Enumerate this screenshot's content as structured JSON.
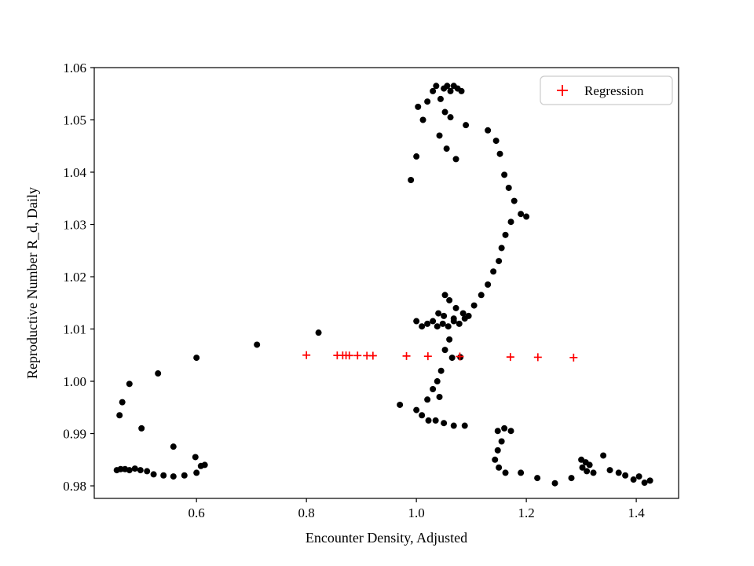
{
  "figure": {
    "background": "#ffffff",
    "axes_color": "#000000"
  },
  "chart_data": {
    "type": "scatter",
    "title": "",
    "xlabel": "Encounter Density, Adjusted",
    "ylabel": "Reproductive Number R_d, Daily",
    "xlim": [
      0.414,
      1.477
    ],
    "ylim": [
      0.9776,
      1.06
    ],
    "grid": false,
    "xtick_values": [
      0.6,
      0.8,
      1.0,
      1.2,
      1.4
    ],
    "xtick_labels": [
      "0.6",
      "0.8",
      "1.0",
      "1.2",
      "1.4"
    ],
    "ytick_values": [
      0.98,
      0.99,
      1.0,
      1.01,
      1.02,
      1.03,
      1.04,
      1.05,
      1.06
    ],
    "ytick_labels": [
      "0.98",
      "0.99",
      "1.00",
      "1.01",
      "1.02",
      "1.03",
      "1.04",
      "1.05",
      "1.06"
    ],
    "legend": {
      "position": "upper right",
      "entries": [
        {
          "label": "Regression",
          "marker": "plus",
          "color": "#ff0000"
        }
      ]
    },
    "series": [
      {
        "name": "observations",
        "marker": "circle",
        "color": "#000000",
        "marker_radius": 4,
        "points": [
          [
            0.99,
            1.0385
          ],
          [
            1.0,
            1.043
          ],
          [
            1.003,
            1.0525
          ],
          [
            1.012,
            1.05
          ],
          [
            1.02,
            1.0535
          ],
          [
            1.03,
            1.0555
          ],
          [
            1.036,
            1.0565
          ],
          [
            1.044,
            1.054
          ],
          [
            1.05,
            1.056
          ],
          [
            1.056,
            1.0565
          ],
          [
            1.062,
            1.0555
          ],
          [
            1.068,
            1.0565
          ],
          [
            1.075,
            1.056
          ],
          [
            1.082,
            1.0555
          ],
          [
            1.052,
            1.0515
          ],
          [
            1.062,
            1.0505
          ],
          [
            1.042,
            1.047
          ],
          [
            1.055,
            1.0445
          ],
          [
            1.072,
            1.0425
          ],
          [
            1.09,
            1.049
          ],
          [
            1.13,
            1.048
          ],
          [
            1.145,
            1.046
          ],
          [
            1.152,
            1.0435
          ],
          [
            1.16,
            1.0395
          ],
          [
            1.168,
            1.037
          ],
          [
            1.178,
            1.0345
          ],
          [
            1.19,
            1.032
          ],
          [
            1.2,
            1.0315
          ],
          [
            1.172,
            1.0305
          ],
          [
            1.162,
            1.028
          ],
          [
            1.155,
            1.0255
          ],
          [
            1.15,
            1.023
          ],
          [
            1.14,
            1.021
          ],
          [
            1.13,
            1.0185
          ],
          [
            1.118,
            1.0165
          ],
          [
            1.105,
            1.0145
          ],
          [
            1.085,
            1.013
          ],
          [
            1.068,
            1.012
          ],
          [
            1.052,
            1.0165
          ],
          [
            1.06,
            1.0155
          ],
          [
            1.072,
            1.014
          ],
          [
            1.095,
            1.0125
          ],
          [
            1.04,
            1.013
          ],
          [
            1.03,
            1.0115
          ],
          [
            1.02,
            1.011
          ],
          [
            1.01,
            1.0105
          ],
          [
            1.0,
            1.0115
          ],
          [
            1.048,
            1.011
          ],
          [
            1.058,
            1.0105
          ],
          [
            1.068,
            1.0115
          ],
          [
            1.038,
            1.0105
          ],
          [
            1.05,
            1.0125
          ],
          [
            1.078,
            1.011
          ],
          [
            1.088,
            1.012
          ],
          [
            0.822,
            1.0093
          ],
          [
            0.71,
            1.007
          ],
          [
            0.6,
            1.0045
          ],
          [
            1.06,
            1.008
          ],
          [
            1.052,
            1.006
          ],
          [
            1.065,
            1.0045
          ],
          [
            1.08,
            1.0046
          ],
          [
            1.045,
            1.002
          ],
          [
            1.038,
            1.0
          ],
          [
            1.03,
            0.9985
          ],
          [
            1.042,
            0.997
          ],
          [
            1.02,
            0.9965
          ],
          [
            0.97,
            0.9955
          ],
          [
            1.0,
            0.9945
          ],
          [
            1.01,
            0.9935
          ],
          [
            1.022,
            0.9925
          ],
          [
            1.035,
            0.9925
          ],
          [
            1.05,
            0.992
          ],
          [
            1.068,
            0.9915
          ],
          [
            1.088,
            0.9915
          ],
          [
            1.148,
            0.9905
          ],
          [
            1.16,
            0.991
          ],
          [
            1.172,
            0.9905
          ],
          [
            1.155,
            0.9885
          ],
          [
            1.148,
            0.9868
          ],
          [
            1.143,
            0.985
          ],
          [
            1.15,
            0.9835
          ],
          [
            1.162,
            0.9825
          ],
          [
            1.19,
            0.9825
          ],
          [
            1.22,
            0.9815
          ],
          [
            1.252,
            0.9805
          ],
          [
            1.282,
            0.9815
          ],
          [
            1.3,
            0.985
          ],
          [
            1.308,
            0.9845
          ],
          [
            1.315,
            0.984
          ],
          [
            1.302,
            0.9835
          ],
          [
            1.31,
            0.9828
          ],
          [
            1.322,
            0.9825
          ],
          [
            1.34,
            0.9858
          ],
          [
            1.352,
            0.983
          ],
          [
            1.368,
            0.9825
          ],
          [
            1.38,
            0.982
          ],
          [
            1.395,
            0.9812
          ],
          [
            1.405,
            0.9818
          ],
          [
            1.415,
            0.9806
          ],
          [
            1.425,
            0.981
          ],
          [
            0.53,
            1.0015
          ],
          [
            0.478,
            0.9995
          ],
          [
            0.465,
            0.996
          ],
          [
            0.46,
            0.9935
          ],
          [
            0.5,
            0.991
          ],
          [
            0.558,
            0.9875
          ],
          [
            0.598,
            0.9855
          ],
          [
            0.608,
            0.9838
          ],
          [
            0.455,
            0.983
          ],
          [
            0.462,
            0.9832
          ],
          [
            0.47,
            0.9832
          ],
          [
            0.478,
            0.983
          ],
          [
            0.488,
            0.9833
          ],
          [
            0.498,
            0.983
          ],
          [
            0.51,
            0.9828
          ],
          [
            0.522,
            0.9822
          ],
          [
            0.54,
            0.982
          ],
          [
            0.558,
            0.9818
          ],
          [
            0.578,
            0.982
          ],
          [
            0.6,
            0.9825
          ],
          [
            0.615,
            0.984
          ]
        ]
      },
      {
        "name": "Regression",
        "marker": "plus",
        "color": "#ff0000",
        "marker_size": 5,
        "points": [
          [
            0.8,
            1.005
          ],
          [
            0.856,
            1.00495
          ],
          [
            0.866,
            1.00494
          ],
          [
            0.872,
            1.00494
          ],
          [
            0.878,
            1.00493
          ],
          [
            0.893,
            1.00492
          ],
          [
            0.91,
            1.0049
          ],
          [
            0.921,
            1.00489
          ],
          [
            0.982,
            1.00483
          ],
          [
            1.021,
            1.00479
          ],
          [
            1.079,
            1.00474
          ],
          [
            1.171,
            1.00465
          ],
          [
            1.221,
            1.0046
          ],
          [
            1.286,
            1.00454
          ]
        ]
      }
    ]
  }
}
